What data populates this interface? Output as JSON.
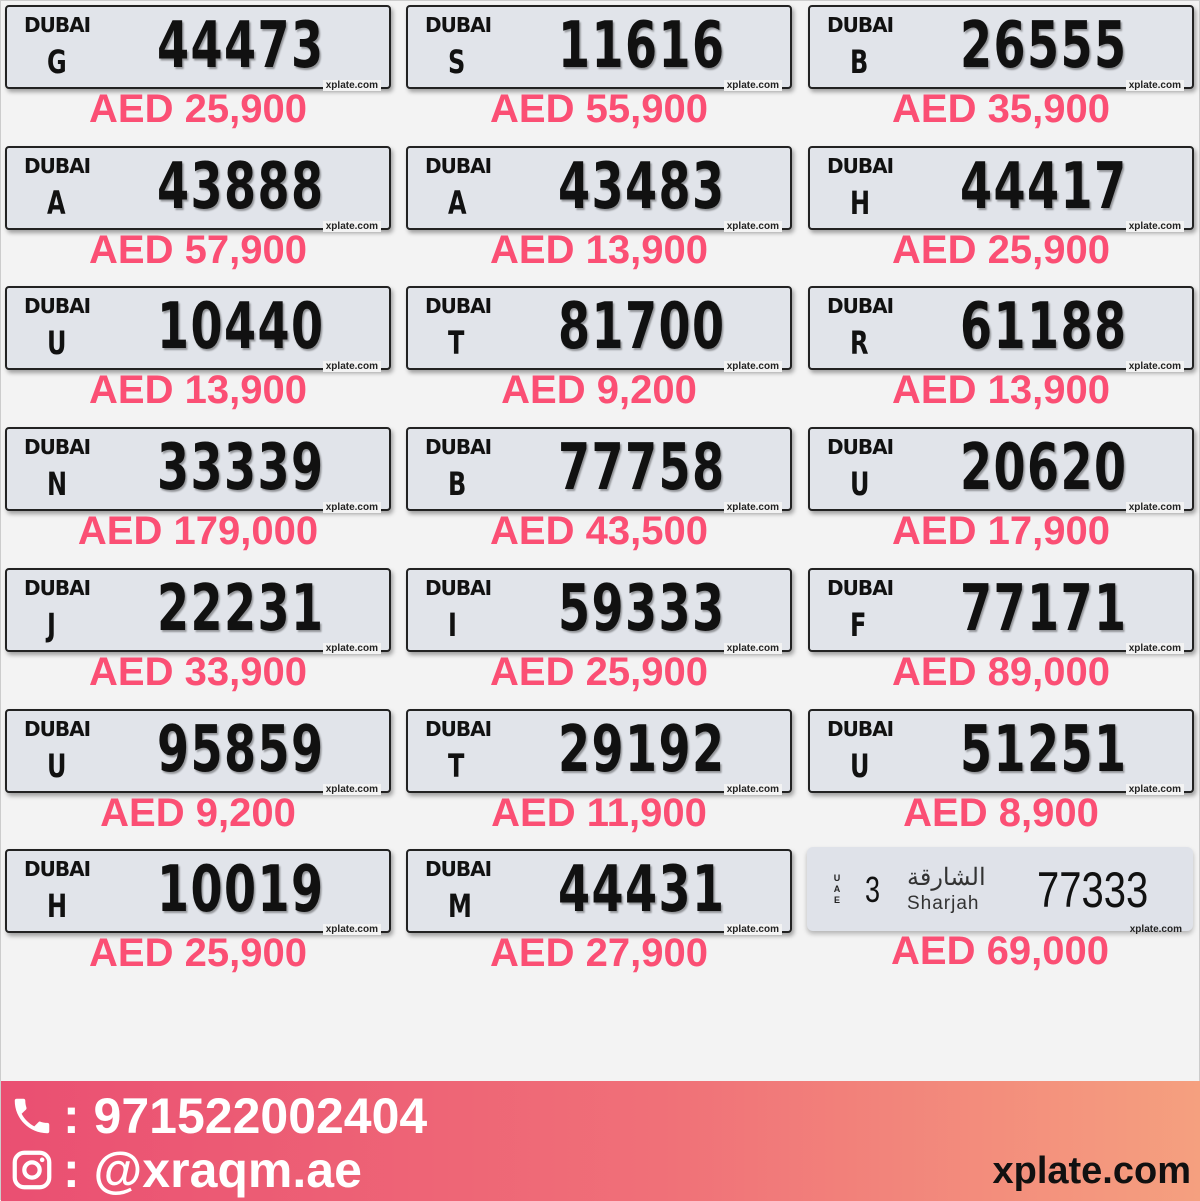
{
  "plates": [
    {
      "emirate": "DUBAI",
      "code": "G",
      "number": "44473",
      "price": "AED 25,900"
    },
    {
      "emirate": "DUBAI",
      "code": "S",
      "number": "11616",
      "price": "AED 55,900"
    },
    {
      "emirate": "DUBAI",
      "code": "B",
      "number": "26555",
      "price": "AED 35,900"
    },
    {
      "emirate": "DUBAI",
      "code": "A",
      "number": "43888",
      "price": "AED 57,900"
    },
    {
      "emirate": "DUBAI",
      "code": "A",
      "number": "43483",
      "price": "AED 13,900"
    },
    {
      "emirate": "DUBAI",
      "code": "H",
      "number": "44417",
      "price": "AED 25,900"
    },
    {
      "emirate": "DUBAI",
      "code": "U",
      "number": "10440",
      "price": "AED 13,900"
    },
    {
      "emirate": "DUBAI",
      "code": "T",
      "number": "81700",
      "price": "AED 9,200"
    },
    {
      "emirate": "DUBAI",
      "code": "R",
      "number": "61188",
      "price": "AED 13,900"
    },
    {
      "emirate": "DUBAI",
      "code": "N",
      "number": "33339",
      "price": "AED 179,000"
    },
    {
      "emirate": "DUBAI",
      "code": "B",
      "number": "77758",
      "price": "AED 43,500"
    },
    {
      "emirate": "DUBAI",
      "code": "U",
      "number": "20620",
      "price": "AED 17,900"
    },
    {
      "emirate": "DUBAI",
      "code": "J",
      "number": "22231",
      "price": "AED 33,900"
    },
    {
      "emirate": "DUBAI",
      "code": "I",
      "number": "59333",
      "price": "AED 25,900"
    },
    {
      "emirate": "DUBAI",
      "code": "F",
      "number": "77171",
      "price": "AED 89,000"
    },
    {
      "emirate": "DUBAI",
      "code": "U",
      "number": "95859",
      "price": "AED 9,200"
    },
    {
      "emirate": "DUBAI",
      "code": "T",
      "number": "29192",
      "price": "AED 11,900"
    },
    {
      "emirate": "DUBAI",
      "code": "U",
      "number": "51251",
      "price": "AED 8,900"
    },
    {
      "emirate": "DUBAI",
      "code": "H",
      "number": "10019",
      "price": "AED 25,900"
    },
    {
      "emirate": "DUBAI",
      "code": "M",
      "number": "44431",
      "price": "AED 27,900"
    }
  ],
  "sharjah": {
    "uae": "UAE",
    "code": "3",
    "arabic": "الشارقة",
    "emirate": "Sharjah",
    "number": "77333",
    "price": "AED 69,000"
  },
  "watermark": "xplate.com",
  "footer": {
    "phone": ": 971522002404",
    "instagram": ": @xraqm.ae",
    "site": "xplate.com"
  },
  "colors": {
    "price": "#fb4f74"
  }
}
